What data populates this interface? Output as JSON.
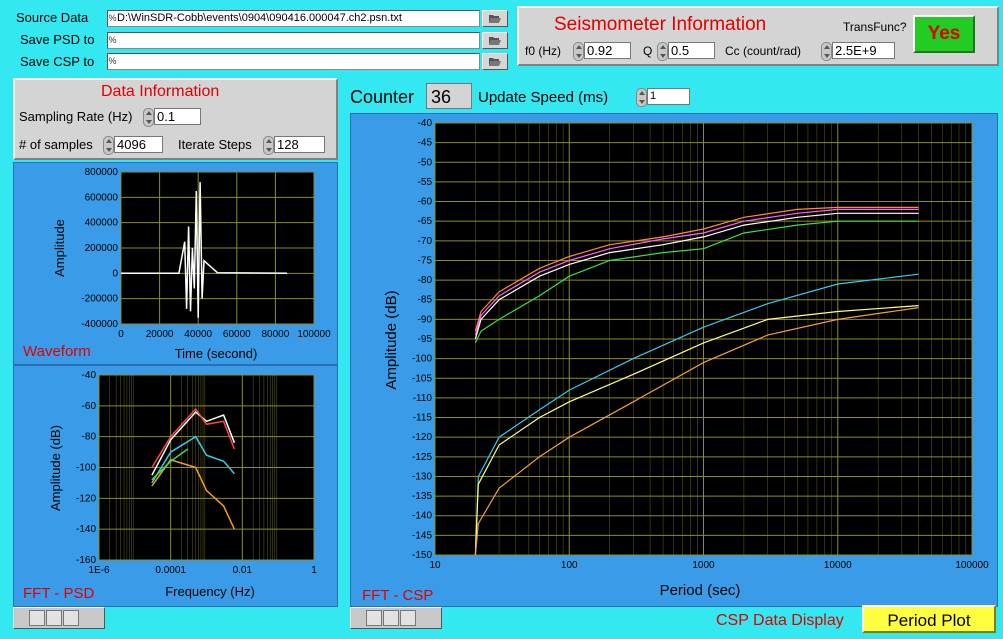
{
  "files": {
    "source_label": "Source Data",
    "source_path": "D:\\WinSDR-Cobb\\events\\0904\\090416.000047.ch2.psn.txt",
    "psd_label": "Save PSD to",
    "psd_path": "",
    "csp_label": "Save CSP to",
    "csp_path": "",
    "path_prefix": "%"
  },
  "seismometer": {
    "title": "Seismometer Information",
    "transfunc_label": "TransFunc?",
    "transfunc_value": "Yes",
    "f0_label": "f0 (Hz)",
    "f0_value": "0.92",
    "q_label": "Q",
    "q_value": "0.5",
    "cc_label": "Cc (count/rad)",
    "cc_value": "2.5E+9"
  },
  "data_info": {
    "title": "Data Information",
    "sampling_label": "Sampling Rate (Hz)",
    "sampling_value": "0.1",
    "samples_label": "# of samples",
    "samples_value": "4096",
    "iterate_label": "Iterate Steps",
    "iterate_value": "128"
  },
  "counter": {
    "label": "Counter",
    "value": "36",
    "speed_label": "Update Speed (ms)",
    "speed_value": "1"
  },
  "bottom": {
    "csp_display_label": "CSP Data Display",
    "csp_display_value": "Period Plot"
  },
  "colors": {
    "background": "#33e8f0",
    "panel_blue": "#3a9ce8",
    "title_red": "#e00000",
    "yes_green": "#22cc22",
    "plot_bg": "#000000",
    "grid_yellow": "#8c8c28"
  },
  "chart_data": [
    {
      "type": "line",
      "title": "Waveform",
      "xlabel": "Time (second)",
      "ylabel": "Amplitude",
      "xlim": [
        0,
        100000
      ],
      "ylim": [
        -400000,
        800000
      ],
      "xticks": [
        "0",
        "20000",
        "40000",
        "60000",
        "80000",
        "100000"
      ],
      "yticks": [
        "800000",
        "600000",
        "400000",
        "200000",
        "0",
        "-200000",
        "-400000"
      ],
      "series": [
        {
          "color": "#ffffff",
          "x": [
            0,
            30000,
            33000,
            34000,
            35000,
            36000,
            37000,
            38000,
            39000,
            40000,
            41000,
            42000,
            43000,
            50000,
            86000
          ],
          "y": [
            0,
            0,
            250000,
            -280000,
            370000,
            -300000,
            200000,
            -120000,
            650000,
            -350000,
            720000,
            -200000,
            100000,
            5000,
            0
          ]
        }
      ],
      "grid": true
    },
    {
      "type": "line",
      "title": "FFT - PSD",
      "xlabel": "Frequency (Hz)",
      "ylabel": "Amplitude (dB)",
      "xscale": "log",
      "xlim": [
        1e-06,
        1
      ],
      "ylim": [
        -160,
        -40
      ],
      "xticks": [
        "1E-6",
        "0.0001",
        "0.01",
        "1"
      ],
      "yticks": [
        "-40",
        "-60",
        "-80",
        "-100",
        "-120",
        "-140",
        "-160"
      ],
      "series": [
        {
          "color": "#ffffff",
          "x": [
            3e-05,
            0.0001,
            0.0005,
            0.001,
            0.003,
            0.006
          ],
          "y": [
            -105,
            -82,
            -64,
            -70,
            -66,
            -84
          ]
        },
        {
          "color": "#ff4444",
          "x": [
            3e-05,
            0.0001,
            0.0005,
            0.001,
            0.003,
            0.006
          ],
          "y": [
            -100,
            -80,
            -62,
            -72,
            -70,
            -88
          ]
        },
        {
          "color": "#3ac8f0",
          "x": [
            3e-05,
            0.0001,
            0.0005,
            0.001,
            0.003,
            0.006
          ],
          "y": [
            -110,
            -90,
            -80,
            -92,
            -96,
            -104
          ]
        },
        {
          "color": "#f0a020",
          "x": [
            3e-05,
            0.0001,
            0.0005,
            0.001,
            0.003,
            0.006
          ],
          "y": [
            -112,
            -95,
            -100,
            -115,
            -125,
            -140
          ]
        },
        {
          "color": "#40e040",
          "x": [
            3e-05,
            0.0001,
            0.0003
          ],
          "y": [
            -108,
            -96,
            -88
          ]
        }
      ],
      "grid": true
    },
    {
      "type": "line",
      "title": "FFT - CSP",
      "xlabel": "Period (sec)",
      "ylabel": "Amplitude (dB)",
      "xscale": "log",
      "xlim": [
        10,
        100000
      ],
      "ylim": [
        -150,
        -40
      ],
      "xticks": [
        "10",
        "100",
        "1000",
        "10000",
        "100000"
      ],
      "yticks": [
        "-40",
        "-45",
        "-50",
        "-55",
        "-60",
        "-65",
        "-70",
        "-75",
        "-80",
        "-85",
        "-90",
        "-95",
        "-100",
        "-105",
        "-110",
        "-115",
        "-120",
        "-125",
        "-130",
        "-135",
        "-140",
        "-145",
        "-150"
      ],
      "series": [
        {
          "color": "#ff8a3a",
          "x": [
            20,
            22,
            30,
            60,
            100,
            200,
            500,
            1000,
            2000,
            5000,
            10000,
            40000
          ],
          "y": [
            -93,
            -88,
            -83,
            -77,
            -74,
            -71,
            -69,
            -67,
            -64,
            -62,
            -61.5,
            -61.5
          ]
        },
        {
          "color": "#ff60ff",
          "x": [
            20,
            22,
            30,
            60,
            100,
            200,
            500,
            1000,
            2000,
            5000,
            10000,
            40000
          ],
          "y": [
            -94,
            -89,
            -84,
            -78,
            -75,
            -72,
            -69.5,
            -68,
            -65,
            -63,
            -62,
            -62
          ]
        },
        {
          "color": "#ffffff",
          "x": [
            20,
            22,
            30,
            60,
            100,
            200,
            500,
            1000,
            2000,
            5000,
            10000,
            40000
          ],
          "y": [
            -95,
            -90,
            -85,
            -79,
            -76,
            -73,
            -71,
            -69,
            -66,
            -64,
            -63,
            -63
          ]
        },
        {
          "color": "#40e040",
          "x": [
            20,
            22,
            30,
            60,
            100,
            200,
            500,
            1000,
            2000,
            5000,
            10000,
            40000
          ],
          "y": [
            -96,
            -93,
            -90,
            -84,
            -79,
            -75,
            -73,
            -72,
            -68,
            -66,
            -65,
            -65
          ]
        },
        {
          "color": "#3ac8f0",
          "x": [
            20,
            21,
            30,
            60,
            100,
            300,
            1000,
            3000,
            10000,
            40000
          ],
          "y": [
            -150,
            -130,
            -120,
            -113,
            -108,
            -100,
            -92,
            -86,
            -81,
            -78.5
          ]
        },
        {
          "color": "#ffff80",
          "x": [
            20,
            21,
            30,
            60,
            100,
            300,
            1000,
            3000,
            10000,
            40000
          ],
          "y": [
            -150,
            -132,
            -122,
            -115,
            -111,
            -104,
            -96,
            -90,
            -88,
            -86.5
          ]
        },
        {
          "color": "#f0a040",
          "x": [
            20,
            21,
            30,
            60,
            100,
            300,
            1000,
            3000,
            10000,
            40000
          ],
          "y": [
            -150,
            -142,
            -133,
            -125,
            -120,
            -111,
            -101,
            -94,
            -90,
            -87
          ]
        }
      ],
      "grid": true
    }
  ]
}
